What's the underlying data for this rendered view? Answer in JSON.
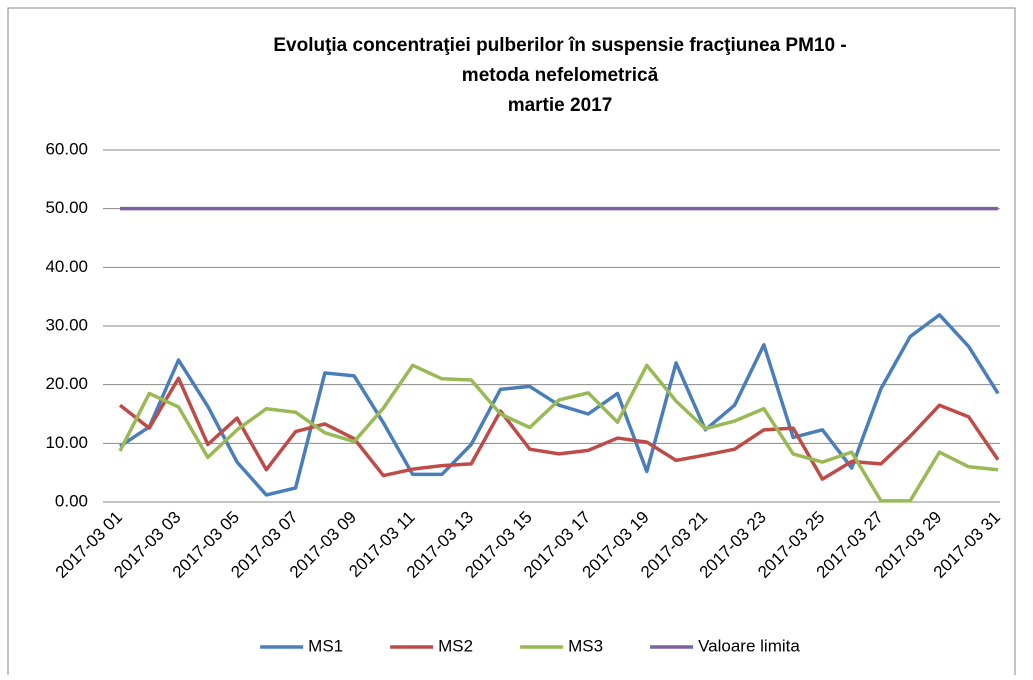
{
  "chart_data": {
    "type": "line",
    "title": [
      "Evoluţia concentraţiei pulberilor în suspensie fracţiunea PM10 -",
      "metoda nefelometrică",
      "martie 2017"
    ],
    "categories": [
      "2017-03 01",
      null,
      "2017-03 03",
      null,
      "2017-03 05",
      null,
      "2017-03 07",
      null,
      "2017-03 09",
      null,
      "2017-03 11",
      null,
      "2017-03 13",
      null,
      "2017-03 15",
      null,
      "2017-03 17",
      null,
      "2017-03 19",
      null,
      "2017-03 21",
      null,
      "2017-03 23",
      null,
      "2017-03 25",
      null,
      "2017-03 27",
      null,
      "2017-03 29",
      null,
      "2017-03 31"
    ],
    "series": [
      {
        "name": "MS1",
        "color": "#4a7ebb",
        "values": [
          9.5,
          12.8,
          24.2,
          16.3,
          6.8,
          1.2,
          2.4,
          22.0,
          21.5,
          13.5,
          4.7,
          4.7,
          9.8,
          19.2,
          19.7,
          16.5,
          15.0,
          18.5,
          5.2,
          23.7,
          12.3,
          16.5,
          26.8,
          11.0,
          12.3,
          5.8,
          19.3,
          28.2,
          31.9,
          26.5,
          18.5
        ]
      },
      {
        "name": "MS2",
        "color": "#be4b48",
        "values": [
          16.5,
          12.6,
          21.1,
          9.8,
          14.3,
          5.5,
          12.0,
          13.3,
          10.8,
          4.5,
          5.6,
          6.2,
          6.5,
          15.5,
          9.0,
          8.2,
          8.8,
          10.9,
          10.2,
          7.1,
          8.0,
          9.0,
          12.3,
          12.6,
          3.9,
          6.9,
          6.5,
          11.2,
          16.5,
          14.5,
          7.2
        ]
      },
      {
        "name": "MS3",
        "color": "#98b954",
        "values": [
          8.7,
          18.5,
          16.2,
          7.6,
          12.3,
          15.9,
          15.3,
          11.8,
          10.3,
          16.0,
          23.3,
          21.0,
          20.8,
          15.0,
          12.7,
          17.4,
          18.6,
          13.6,
          23.3,
          17.2,
          12.5,
          13.8,
          15.9,
          8.2,
          6.8,
          8.5,
          0.2,
          0.2,
          8.5,
          6.0,
          5.5
        ]
      },
      {
        "name": "Valoare limita",
        "color": "#7d60a0",
        "values": [
          50,
          50,
          50,
          50,
          50,
          50,
          50,
          50,
          50,
          50,
          50,
          50,
          50,
          50,
          50,
          50,
          50,
          50,
          50,
          50,
          50,
          50,
          50,
          50,
          50,
          50,
          50,
          50,
          50,
          50,
          50
        ]
      }
    ],
    "ylim": [
      0,
      60
    ],
    "yticks": [
      {
        "value": 0,
        "label": "0.00"
      },
      {
        "value": 10,
        "label": "10.00"
      },
      {
        "value": 20,
        "label": "20.00"
      },
      {
        "value": 30,
        "label": "30.00"
      },
      {
        "value": 40,
        "label": "40.00"
      },
      {
        "value": 50,
        "label": "50.00"
      },
      {
        "value": 60,
        "label": "60.00"
      }
    ],
    "grid": true,
    "legend": "bottom"
  }
}
